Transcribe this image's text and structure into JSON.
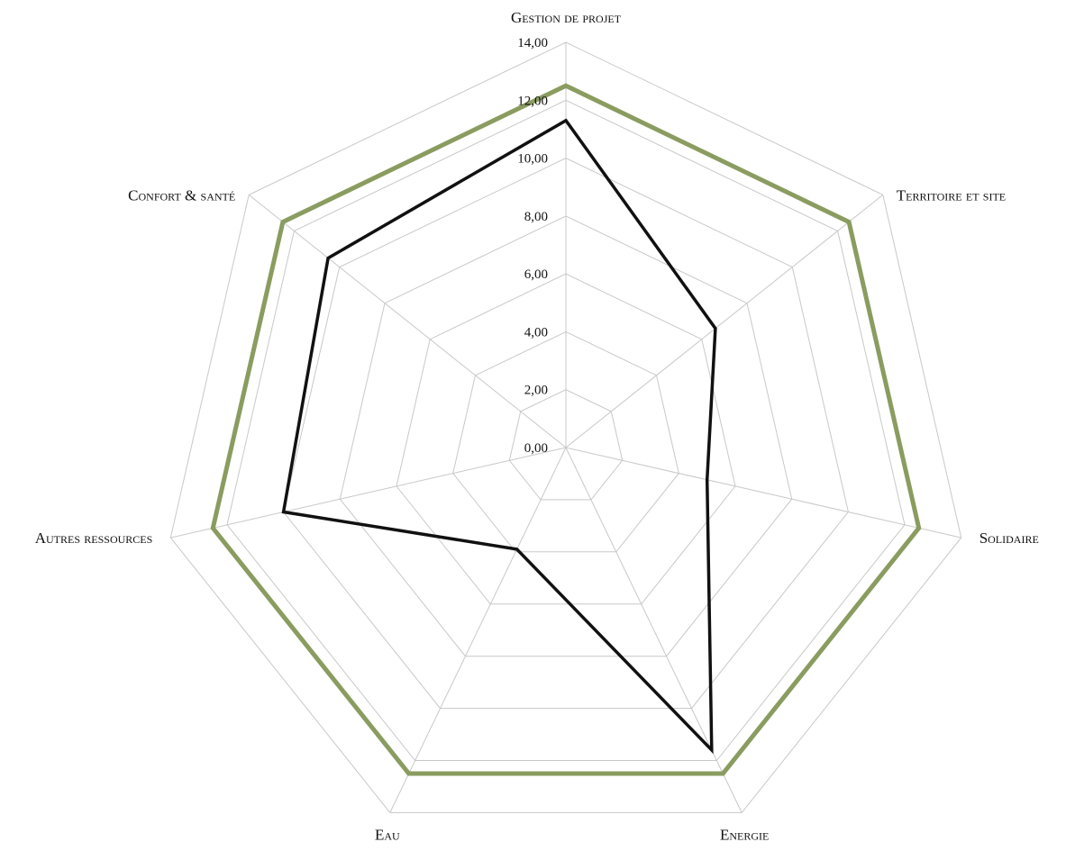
{
  "chart_data": {
    "type": "radar",
    "categories": [
      "Gestion de projet",
      "Territoire et site",
      "Solidaire",
      "Energie",
      "Eau",
      "Autres ressources",
      "Confort & santé"
    ],
    "tick_labels": [
      "0,00",
      "2,00",
      "4,00",
      "6,00",
      "8,00",
      "10,00",
      "12,00",
      "14,00"
    ],
    "rlim": [
      0,
      14
    ],
    "grid": true,
    "legend": "none",
    "series": [
      {
        "values": [
          12.5,
          12.5,
          12.5,
          12.5,
          12.5,
          12.5,
          12.5
        ],
        "color": "#8a9c5f"
      },
      {
        "values": [
          11.3,
          6.6,
          5.0,
          11.6,
          3.9,
          10.0,
          10.5
        ],
        "color": "#111111"
      }
    ]
  }
}
